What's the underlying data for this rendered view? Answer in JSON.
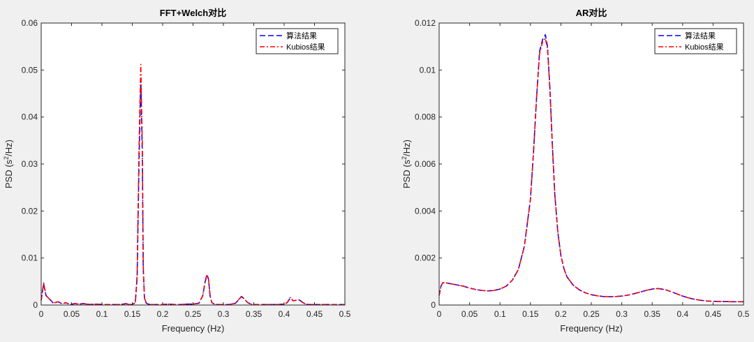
{
  "colors": {
    "background": "#f0f0f0",
    "axes_bg": "#ffffff",
    "series_algo": "#0000ff",
    "series_kubios": "#ff0000",
    "axis": "#262626"
  },
  "chart_data": [
    {
      "type": "line",
      "title": "FFT+Welch对比",
      "xlabel": "Frequency (Hz)",
      "ylabel_base": "PSD (s",
      "ylabel_sup": "2",
      "ylabel_tail": "/Hz)",
      "xlim": [
        0,
        0.5
      ],
      "ylim": [
        0,
        0.06
      ],
      "xticks": [
        0,
        0.05,
        0.1,
        0.15,
        0.2,
        0.25,
        0.3,
        0.35,
        0.4,
        0.45,
        0.5
      ],
      "xtick_labels": [
        "0",
        "0.05",
        "0.1",
        "0.15",
        "0.2",
        "0.25",
        "0.3",
        "0.35",
        "0.4",
        "0.45",
        "0.5"
      ],
      "yticks": [
        0,
        0.01,
        0.02,
        0.03,
        0.04,
        0.05,
        0.06
      ],
      "ytick_labels": [
        "0",
        "0.01",
        "0.02",
        "0.03",
        "0.04",
        "0.05",
        "0.06"
      ],
      "grid": false,
      "legend_position": "top-right",
      "series": [
        {
          "name": "算法结果",
          "style": "dashed",
          "color": "#0000ff",
          "x": [
            0,
            0.004,
            0.008,
            0.012,
            0.02,
            0.028,
            0.035,
            0.04,
            0.048,
            0.055,
            0.062,
            0.07,
            0.08,
            0.09,
            0.1,
            0.11,
            0.12,
            0.13,
            0.14,
            0.145,
            0.15,
            0.155,
            0.158,
            0.161,
            0.164,
            0.1665,
            0.168,
            0.17,
            0.173,
            0.176,
            0.18,
            0.19,
            0.2,
            0.21,
            0.22,
            0.23,
            0.24,
            0.25,
            0.26,
            0.266,
            0.27,
            0.273,
            0.2755,
            0.278,
            0.281,
            0.285,
            0.29,
            0.3,
            0.31,
            0.32,
            0.33,
            0.335,
            0.34,
            0.345,
            0.35,
            0.36,
            0.37,
            0.38,
            0.39,
            0.4,
            0.405,
            0.41,
            0.415,
            0.42,
            0.425,
            0.43,
            0.435,
            0.44,
            0.45,
            0.46,
            0.47,
            0.48,
            0.49,
            0.5
          ],
          "y": [
            0.001,
            0.0045,
            0.002,
            0.0015,
            0.0004,
            0.0007,
            0.0002,
            0.0005,
            0.0001,
            0.0003,
            0.0002,
            0.0003,
            0.0001,
            0.0002,
            0.0001,
            0.0001,
            0.0001,
            0.0001,
            0.0003,
            0.0001,
            0.0001,
            0.0005,
            0.006,
            0.03,
            0.048,
            0.032,
            0.008,
            0.0015,
            0.0004,
            0.0002,
            0.0001,
            0.0001,
            0.0001,
            0.0002,
            0.0001,
            0.0001,
            0.0002,
            0.0002,
            0.0004,
            0.002,
            0.005,
            0.0063,
            0.0055,
            0.002,
            0.0005,
            0.0002,
            0.0001,
            0.0001,
            0.0001,
            0.0004,
            0.0018,
            0.0012,
            0.0005,
            0.0002,
            0.0001,
            0.0001,
            0.0001,
            0.0001,
            0.0001,
            0.0002,
            0.0005,
            0.0015,
            0.0009,
            0.001,
            0.0011,
            0.0006,
            0.0002,
            0.0001,
            0.0001,
            0.0001,
            0.0001,
            0.0001,
            0.0001,
            0.0001
          ]
        },
        {
          "name": "Kubios结果",
          "style": "dashdot",
          "color": "#ff0000",
          "x": [
            0,
            0.004,
            0.008,
            0.012,
            0.02,
            0.028,
            0.035,
            0.04,
            0.048,
            0.055,
            0.062,
            0.07,
            0.08,
            0.09,
            0.1,
            0.11,
            0.12,
            0.13,
            0.14,
            0.145,
            0.15,
            0.155,
            0.158,
            0.161,
            0.164,
            0.1665,
            0.168,
            0.17,
            0.173,
            0.176,
            0.18,
            0.19,
            0.2,
            0.21,
            0.22,
            0.23,
            0.24,
            0.25,
            0.26,
            0.266,
            0.27,
            0.273,
            0.2755,
            0.278,
            0.281,
            0.285,
            0.29,
            0.3,
            0.31,
            0.32,
            0.33,
            0.335,
            0.34,
            0.345,
            0.35,
            0.36,
            0.37,
            0.38,
            0.39,
            0.4,
            0.405,
            0.41,
            0.415,
            0.42,
            0.425,
            0.43,
            0.435,
            0.44,
            0.45,
            0.46,
            0.47,
            0.48,
            0.49,
            0.5
          ],
          "y": [
            0.001,
            0.0047,
            0.002,
            0.0015,
            0.0004,
            0.0007,
            0.0002,
            0.0005,
            0.0001,
            0.0003,
            0.0002,
            0.0003,
            0.0001,
            0.0002,
            0.0001,
            0.0001,
            0.0001,
            0.0001,
            0.0003,
            0.0001,
            0.0001,
            0.0005,
            0.0065,
            0.033,
            0.0512,
            0.034,
            0.0085,
            0.0015,
            0.0004,
            0.0002,
            0.0001,
            0.0001,
            0.0001,
            0.0002,
            0.0001,
            0.0001,
            0.0002,
            0.0002,
            0.0004,
            0.002,
            0.0052,
            0.0065,
            0.0056,
            0.002,
            0.0005,
            0.0002,
            0.0001,
            0.0001,
            0.0001,
            0.0004,
            0.0019,
            0.0012,
            0.0005,
            0.0002,
            0.0001,
            0.0001,
            0.0001,
            0.0001,
            0.0001,
            0.0002,
            0.0005,
            0.0016,
            0.0009,
            0.001,
            0.0011,
            0.0006,
            0.0002,
            0.0001,
            0.0001,
            0.0001,
            0.0001,
            0.0001,
            0.0001,
            0.0001
          ]
        }
      ]
    },
    {
      "type": "line",
      "title": "AR对比",
      "xlabel": "Frequency (Hz)",
      "ylabel_base": "PSD (s",
      "ylabel_sup": "2",
      "ylabel_tail": "/Hz)",
      "xlim": [
        0,
        0.5
      ],
      "ylim": [
        0,
        0.012
      ],
      "xticks": [
        0,
        0.05,
        0.1,
        0.15,
        0.2,
        0.25,
        0.3,
        0.35,
        0.4,
        0.45,
        0.5
      ],
      "xtick_labels": [
        "0",
        "0.05",
        "0.1",
        "0.15",
        "0.2",
        "0.25",
        "0.3",
        "0.35",
        "0.4",
        "0.45",
        "0.5"
      ],
      "yticks": [
        0,
        0.002,
        0.004,
        0.006,
        0.008,
        0.01,
        0.012
      ],
      "ytick_labels": [
        "0",
        "0.002",
        "0.004",
        "0.006",
        "0.008",
        "0.01",
        "0.012"
      ],
      "grid": false,
      "legend_position": "top-right",
      "series": [
        {
          "name": "算法结果",
          "style": "dashed",
          "color": "#0000ff",
          "x": [
            0,
            0.003,
            0.006,
            0.01,
            0.02,
            0.03,
            0.04,
            0.05,
            0.06,
            0.07,
            0.08,
            0.09,
            0.1,
            0.11,
            0.12,
            0.13,
            0.14,
            0.15,
            0.155,
            0.16,
            0.165,
            0.17,
            0.1745,
            0.178,
            0.182,
            0.186,
            0.19,
            0.195,
            0.2,
            0.205,
            0.21,
            0.22,
            0.23,
            0.24,
            0.25,
            0.26,
            0.27,
            0.28,
            0.29,
            0.3,
            0.31,
            0.32,
            0.33,
            0.34,
            0.35,
            0.36,
            0.37,
            0.38,
            0.39,
            0.4,
            0.41,
            0.42,
            0.43,
            0.44,
            0.45,
            0.46,
            0.47,
            0.48,
            0.49,
            0.5
          ],
          "y": [
            0.0004,
            0.0008,
            0.00095,
            0.00095,
            0.0009,
            0.00085,
            0.0008,
            0.00072,
            0.00066,
            0.00062,
            0.0006,
            0.00062,
            0.00068,
            0.0008,
            0.00105,
            0.0015,
            0.0025,
            0.0045,
            0.0065,
            0.0088,
            0.0108,
            0.0113,
            0.0115,
            0.011,
            0.0092,
            0.0068,
            0.0047,
            0.0031,
            0.0021,
            0.00155,
            0.0012,
            0.00085,
            0.00065,
            0.00052,
            0.00044,
            0.00039,
            0.00036,
            0.00035,
            0.00036,
            0.00038,
            0.00042,
            0.00048,
            0.00055,
            0.00062,
            0.00068,
            0.0007,
            0.00066,
            0.00058,
            0.00048,
            0.00038,
            0.0003,
            0.00024,
            0.0002,
            0.00017,
            0.00016,
            0.00015,
            0.00015,
            0.00014,
            0.00014,
            0.00014
          ]
        },
        {
          "name": "Kubios结果",
          "style": "dashdot",
          "color": "#ff0000",
          "x": [
            0,
            0.003,
            0.006,
            0.01,
            0.02,
            0.03,
            0.04,
            0.05,
            0.06,
            0.07,
            0.08,
            0.09,
            0.1,
            0.11,
            0.12,
            0.13,
            0.14,
            0.15,
            0.155,
            0.16,
            0.165,
            0.17,
            0.1745,
            0.178,
            0.182,
            0.186,
            0.19,
            0.195,
            0.2,
            0.205,
            0.21,
            0.22,
            0.23,
            0.24,
            0.25,
            0.26,
            0.27,
            0.28,
            0.29,
            0.3,
            0.31,
            0.32,
            0.33,
            0.34,
            0.35,
            0.36,
            0.37,
            0.38,
            0.39,
            0.4,
            0.41,
            0.42,
            0.43,
            0.44,
            0.45,
            0.46,
            0.47,
            0.48,
            0.49,
            0.5
          ],
          "y": [
            0.0004,
            0.0008,
            0.00095,
            0.00095,
            0.0009,
            0.00085,
            0.0008,
            0.00072,
            0.00066,
            0.00062,
            0.0006,
            0.00062,
            0.00068,
            0.0008,
            0.00105,
            0.0015,
            0.0025,
            0.0045,
            0.0065,
            0.0088,
            0.0107,
            0.0112,
            0.01135,
            0.0109,
            0.0092,
            0.0068,
            0.0047,
            0.0031,
            0.0021,
            0.00155,
            0.0012,
            0.00085,
            0.00065,
            0.00052,
            0.00044,
            0.00039,
            0.00036,
            0.00035,
            0.00036,
            0.00038,
            0.00042,
            0.00048,
            0.00055,
            0.00062,
            0.00068,
            0.0007,
            0.00066,
            0.00058,
            0.00048,
            0.00038,
            0.0003,
            0.00024,
            0.0002,
            0.00017,
            0.00016,
            0.00015,
            0.00015,
            0.00014,
            0.00014,
            0.00014
          ]
        }
      ]
    }
  ]
}
